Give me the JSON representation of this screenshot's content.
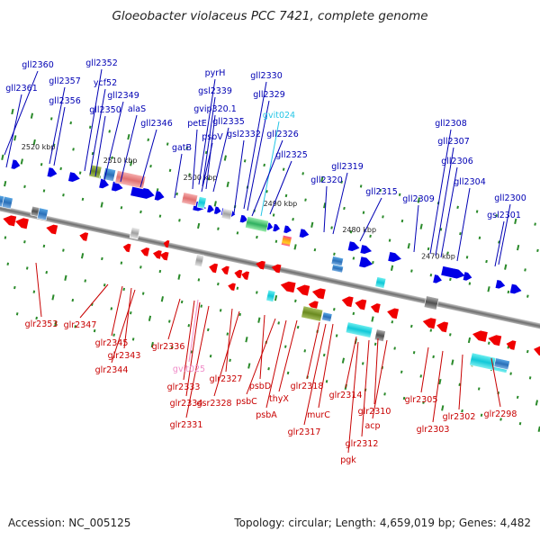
{
  "title": "Gloeobacter violaceus PCC 7421, complete genome",
  "footer": {
    "accession": "Accession: NC_005125",
    "summary": "Topology: circular; Length: 4,659,019 bp; Genes: 4,482"
  },
  "colors": {
    "forward": "#0000e6",
    "reverse": "#f00000",
    "forward_label": "#0000b4",
    "reverse_label": "#c80000",
    "trna_forward": "#26c6e6",
    "trna_reverse": "#f08cc8",
    "backbone": "#8c8c8c",
    "tick": "#2a8a2a"
  },
  "kbp_markers": [
    {
      "label": "2520 kbp",
      "pos": 2520
    },
    {
      "label": "2510 kbp",
      "pos": 2510
    },
    {
      "label": "2500 kbp",
      "pos": 2500
    },
    {
      "label": "2490 kbp",
      "pos": 2490
    },
    {
      "label": "2480 kbp",
      "pos": 2480
    },
    {
      "label": "2470 kbp",
      "pos": 2470
    }
  ],
  "forward_labels": [
    {
      "text": "gll2360"
    },
    {
      "text": "gll2361"
    },
    {
      "text": "gll2357"
    },
    {
      "text": "gll2356"
    },
    {
      "text": "gll2352"
    },
    {
      "text": "ycf52"
    },
    {
      "text": "gll2350"
    },
    {
      "text": "gll2349"
    },
    {
      "text": "alaS"
    },
    {
      "text": "gll2346"
    },
    {
      "text": "pyrH"
    },
    {
      "text": "gsl2339"
    },
    {
      "text": "gvip320.1"
    },
    {
      "text": "petE"
    },
    {
      "text": "gll2335"
    },
    {
      "text": "psbV"
    },
    {
      "text": "gatB"
    },
    {
      "text": "gll2330"
    },
    {
      "text": "gll2329"
    },
    {
      "text": "gvit024",
      "trna": true
    },
    {
      "text": "gsl2332"
    },
    {
      "text": "gll2326"
    },
    {
      "text": "gll2325"
    },
    {
      "text": "gll2320"
    },
    {
      "text": "gll2319"
    },
    {
      "text": "gll2315"
    },
    {
      "text": "gll2309"
    },
    {
      "text": "gll2308"
    },
    {
      "text": "gll2307"
    },
    {
      "text": "gll2306"
    },
    {
      "text": "gll2304"
    },
    {
      "text": "gll2300"
    },
    {
      "text": "gsl2301"
    }
  ],
  "reverse_labels": [
    {
      "text": "glr2353"
    },
    {
      "text": "glr2347"
    },
    {
      "text": "glr2345"
    },
    {
      "text": "glr2343"
    },
    {
      "text": "glr2344"
    },
    {
      "text": "glr2336"
    },
    {
      "text": "gvit025",
      "trna": true
    },
    {
      "text": "glr2333"
    },
    {
      "text": "glr2334"
    },
    {
      "text": "glr2331"
    },
    {
      "text": "glr2327"
    },
    {
      "text": "gsr2328"
    },
    {
      "text": "psbD"
    },
    {
      "text": "psbC"
    },
    {
      "text": "psbA"
    },
    {
      "text": "thyX"
    },
    {
      "text": "glr2318"
    },
    {
      "text": "murC"
    },
    {
      "text": "glr2317"
    },
    {
      "text": "glr2314"
    },
    {
      "text": "glr2310"
    },
    {
      "text": "acp"
    },
    {
      "text": "glr2312"
    },
    {
      "text": "pgk"
    },
    {
      "text": "glr2305"
    },
    {
      "text": "glr2303"
    },
    {
      "text": "glr2302"
    },
    {
      "text": "glr2298"
    }
  ]
}
